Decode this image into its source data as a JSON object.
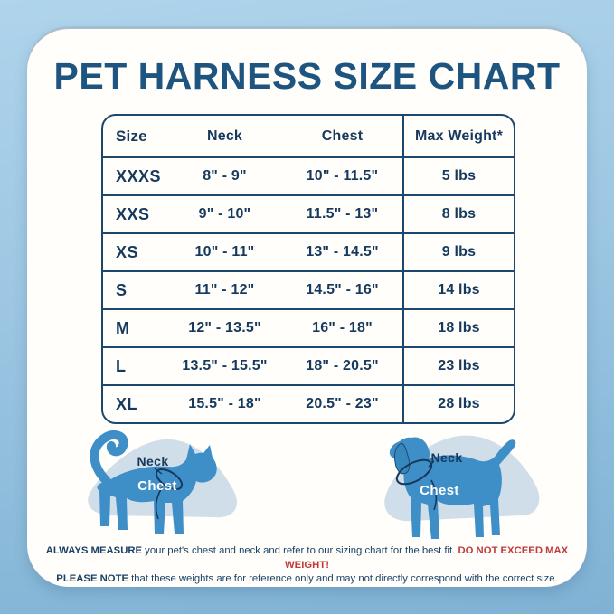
{
  "title": "PET HARNESS SIZE CHART",
  "chart_data": {
    "type": "table",
    "title": "PET HARNESS SIZE CHART",
    "columns": [
      "Size",
      "Neck",
      "Chest",
      "Max Weight*"
    ],
    "rows": [
      [
        "XXXS",
        "8\" - 9\"",
        "10\" - 11.5\"",
        "5 lbs"
      ],
      [
        "XXS",
        "9\" - 10\"",
        "11.5\" - 13\"",
        "8 lbs"
      ],
      [
        "XS",
        "10\" - 11\"",
        "13\" - 14.5\"",
        "9 lbs"
      ],
      [
        "S",
        "11\" - 12\"",
        "14.5\" - 16\"",
        "14 lbs"
      ],
      [
        "M",
        "12\" - 13.5\"",
        "16\" - 18\"",
        "18 lbs"
      ],
      [
        "L",
        "13.5\" - 15.5\"",
        "18\" - 20.5\"",
        "23 lbs"
      ],
      [
        "XL",
        "15.5\" - 18\"",
        "20.5\" - 23\"",
        "28 lbs"
      ]
    ]
  },
  "figures": {
    "cat": {
      "neck_label": "Neck",
      "chest_label": "Chest"
    },
    "dog": {
      "neck_label": "Neck",
      "chest_label": "Chest"
    }
  },
  "footer": {
    "measure_bold": "ALWAYS MEASURE",
    "measure_text": " your pet's chest and neck and refer to our sizing chart for the best fit. ",
    "warning": "DO NOT EXCEED MAX WEIGHT!",
    "note_bold": "PLEASE NOTE",
    "note_text": " that these weights are for reference only and may not directly correspond with the correct size."
  },
  "colors": {
    "background_top": "#AFD4EC",
    "background_bottom": "#7FB2D4",
    "card": "#FFFEFA",
    "table_navy": "#16395E",
    "title_navy": "#1D5480",
    "pet_blue": "#3E8FC7",
    "blob_blue": "#CFDEE9",
    "line_navy": "#17375B",
    "warning_red": "#C03A3A"
  }
}
